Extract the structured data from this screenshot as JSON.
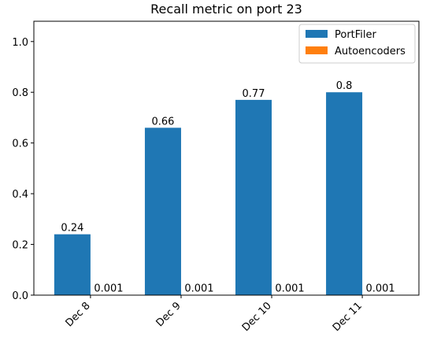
{
  "chart_data": {
    "type": "bar",
    "title": "Recall metric on port 23",
    "xlabel": "",
    "ylabel": "",
    "categories": [
      "Dec 8",
      "Dec 9",
      "Dec 10",
      "Dec 11"
    ],
    "series": [
      {
        "name": "PortFiler",
        "values": [
          0.24,
          0.66,
          0.77,
          0.8
        ],
        "labels": [
          "0.24",
          "0.66",
          "0.77",
          "0.8"
        ],
        "color": "#1f77b4"
      },
      {
        "name": "Autoencoders",
        "values": [
          0.001,
          0.001,
          0.001,
          0.001
        ],
        "labels": [
          "0.001",
          "0.001",
          "0.001",
          "0.001"
        ],
        "color": "#ff7f0e"
      }
    ],
    "ylim": [
      0,
      1.08
    ],
    "yticks": [
      0.0,
      0.2,
      0.4,
      0.6,
      0.8,
      1.0
    ],
    "ytick_labels": [
      "0.0",
      "0.2",
      "0.4",
      "0.6",
      "0.8",
      "1.0"
    ],
    "grid": false,
    "legend_position": "top-right",
    "xtick_rotation_deg": 45
  }
}
